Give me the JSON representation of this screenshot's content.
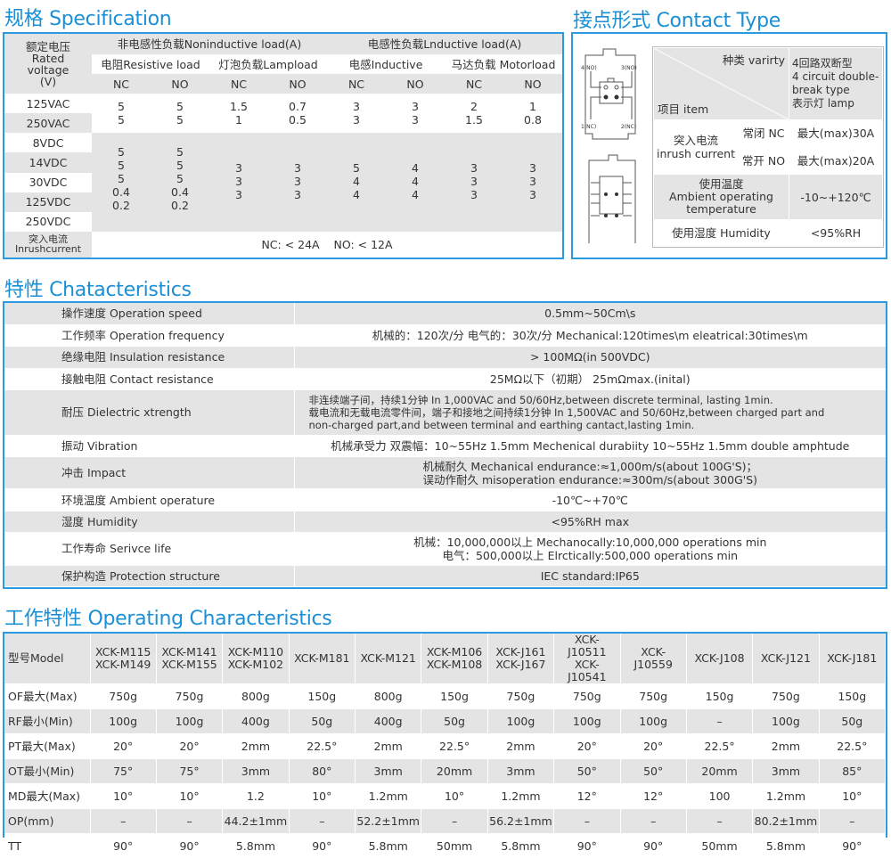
{
  "specification": {
    "title": "规格 Specification",
    "rated_voltage": "额定电压\nRated\nvoltage\n(V)",
    "noninductive": "非电感性负载Noninductive load(A)",
    "inductive": "电感性负载Lnductive load(A)",
    "subheaders": [
      "电阻Resistive load",
      "灯泡负载Lampload",
      "电感Inductive",
      "马达负载 Motorload"
    ],
    "nc_no": [
      "NC",
      "NO",
      "NC",
      "NO",
      "NC",
      "NO",
      "NC",
      "NO"
    ],
    "ac_voltages": [
      "125VAC",
      "250VAC"
    ],
    "ac_values": [
      [
        "5\n5",
        "5\n5",
        "1.5\n1",
        "0.7\n0.5",
        "3\n3",
        "3\n3",
        "2\n1.5",
        "1\n0.8"
      ]
    ],
    "dc_voltages": [
      "8VDC",
      "14VDC",
      "30VDC",
      "125VDC",
      "250VDC"
    ],
    "dc_values": [
      "5\n5\n5\n0.4\n0.2",
      "5\n5\n5\n0.4\n0.2",
      "3\n3\n3",
      "3\n3\n3",
      "5\n4\n4",
      "4\n4\n4",
      "3\n3\n3",
      "3\n3\n3"
    ],
    "inrush_label": "突入电流\nInrushcurrent",
    "inrush_value": "NC: < 24A    NO: < 12A"
  },
  "contact_type": {
    "title": "接点形式 Contact Type",
    "variety": "种类 varirty",
    "item": "项目 item",
    "variety_value": "4回路双断型\n4 circuit double-\nbreak type\n表示灯 lamp",
    "inrush": "突入电流\ninrush current",
    "nc_label": "常闭 NC",
    "nc_value": "最大(max)30A",
    "no_label": "常开 NO",
    "no_value": "最大(max)20A",
    "temp_label": "使用温度\nAmbient operating\ntemperature",
    "temp_value": "-10~+120℃",
    "humidity_label": "使用湿度 Humidity",
    "humidity_value": "<95%RH",
    "diagram1_pins": [
      "4(NO)",
      "3(NO)",
      "1(NC)",
      "2(NC)"
    ],
    "diagram2_pins": [
      "4",
      "3",
      "1",
      "2",
      "8",
      "7",
      "5",
      "6"
    ]
  },
  "characteristics": {
    "title": "特性 Chatacteristics",
    "rows": [
      {
        "label": "操作速度 Operation speed",
        "value": "0.5mm~50Cm\\s"
      },
      {
        "label": "工作频率 Operation frequency",
        "value": "机械的：120次/分  电气的：30次/分  Mechanical:120times\\m eleatrical:30times\\m"
      },
      {
        "label": "绝缘电阻 Insulation resistance",
        "value": "> 100MΩ(in 500VDC)"
      },
      {
        "label": "接触电阻 Contact resistance",
        "value": "25MΩ以下（初期） 25mΩmax.(inital)"
      },
      {
        "label": "耐压    Dielectric xtrength",
        "value": "非连续端子间，持续1分钟 In 1,000VAC and 50/60Hz,between discrete terminal, lasting 1min.\n载电流和无载电流零件间，端子和接地之间持续1分钟 In 1,500VAC and 50/60Hz,between charged part and\nnon-charged part,and between terminal and earthing cantact,lasting 1min.",
        "small": true,
        "left": true
      },
      {
        "label": "振动 Vibration",
        "value": "机械承受力 双震幅：10~55Hz 1.5mm Mechenical durabiity 10~55Hz 1.5mm double amphtude"
      },
      {
        "label": "冲击 Impact",
        "value": "机械耐久 Mechanical endurance:≈1,000m/s(about 100G'S)；\n误动作耐久 misoperation endurance:≈300m/s(about 300G'S)"
      },
      {
        "label": "环境温度 Ambient operature",
        "value": "-10℃~+70℃"
      },
      {
        "label": "湿度 Humidity",
        "value": "<95%RH max"
      },
      {
        "label": "工作寿命 Serivce life",
        "value": "机械：10,000,000以上 Mechanocally:10,000,000 operations min\n电气：500,000以上 Elrctically:500,000 operations min"
      },
      {
        "label": "保护构造 Protection structure",
        "value": "IEC standard:IP65"
      }
    ]
  },
  "operating": {
    "title": "工作特性 Operating Characteristics",
    "header": [
      "型号Model",
      "XCK-M115\nXCK-M149",
      "XCK-M141\nXCK-M155",
      "XCK-M110\nXCK-M102",
      "XCK-M181",
      "XCK-M121",
      "XCK-M106\nXCK-M108",
      "XCK-J161\nXCK-J167",
      "XCK-J10511\nXCK-J10541",
      "XCK-J10559",
      "XCK-J108",
      "XCK-J121",
      "XCK-J181"
    ],
    "rows": [
      [
        "OF最大(Max)",
        "750g",
        "750g",
        "800g",
        "150g",
        "800g",
        "150g",
        "750g",
        "750g",
        "750g",
        "150g",
        "750g",
        "150g"
      ],
      [
        "RF最小(Min)",
        "100g",
        "100g",
        "400g",
        "50g",
        "400g",
        "50g",
        "100g",
        "100g",
        "100g",
        "–",
        "100g",
        "50g"
      ],
      [
        "PT最大(Max)",
        "20°",
        "20°",
        "2mm",
        "22.5°",
        "2mm",
        "22.5°",
        "2mm",
        "20°",
        "20°",
        "22.5°",
        "2mm",
        "22.5°"
      ],
      [
        "OT最小(Min)",
        "75°",
        "75°",
        "3mm",
        "80°",
        "3mm",
        "20mm",
        "3mm",
        "50°",
        "50°",
        "20mm",
        "3mm",
        "85°"
      ],
      [
        "MD最大(Max)",
        "10°",
        "10°",
        "1.2",
        "10°",
        "1.2mm",
        "10°",
        "1.2mm",
        "12°",
        "12°",
        "100",
        "1.2mm",
        "10°"
      ],
      [
        "OP(mm)",
        "–",
        "–",
        "44.2±1mm",
        "–",
        "52.2±1mm",
        "–",
        "56.2±1mm",
        "–",
        "–",
        "–",
        "80.2±1mm",
        "–"
      ],
      [
        "TT",
        "90°",
        "90°",
        "5.8mm",
        "90°",
        "5.8mm",
        "50mm",
        "5.8mm",
        "90°",
        "90°",
        "50mm",
        "5.8mm",
        "90°"
      ]
    ]
  },
  "colors": {
    "accent": "#1b8fd6",
    "row_gray": "#e4e4e4"
  }
}
